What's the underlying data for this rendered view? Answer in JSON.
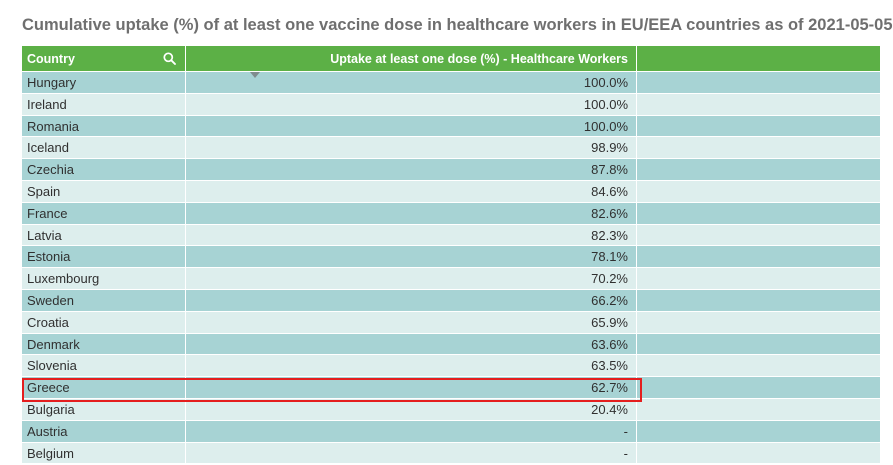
{
  "title": "Cumulative uptake (%) of at least one vaccine dose in healthcare workers in EU/EEA countries as of 2021-05-05",
  "colors": {
    "header_bg": "#5cb046",
    "row_odd": "#a7d3d4",
    "row_even": "#ddeeed",
    "highlight": "#e41e1e"
  },
  "table": {
    "col_country": "Country",
    "col_value": "Uptake at least one dose (%) - Healthcare Workers",
    "search_icon": "search-icon",
    "sort_icon": "sort-descending-icon"
  },
  "highlighted_row": "Greece",
  "chart_data": {
    "type": "table",
    "title": "Cumulative uptake (%) of at least one vaccine dose in healthcare workers in EU/EEA countries as of 2021-05-05",
    "columns": [
      "Country",
      "Uptake at least one dose (%) - Healthcare Workers"
    ],
    "rows": [
      {
        "country": "Hungary",
        "value": "100.0%"
      },
      {
        "country": "Ireland",
        "value": "100.0%"
      },
      {
        "country": "Romania",
        "value": "100.0%"
      },
      {
        "country": "Iceland",
        "value": "98.9%"
      },
      {
        "country": "Czechia",
        "value": "87.8%"
      },
      {
        "country": "Spain",
        "value": "84.6%"
      },
      {
        "country": "France",
        "value": "82.6%"
      },
      {
        "country": "Latvia",
        "value": "82.3%"
      },
      {
        "country": "Estonia",
        "value": "78.1%"
      },
      {
        "country": "Luxembourg",
        "value": "70.2%"
      },
      {
        "country": "Sweden",
        "value": "66.2%"
      },
      {
        "country": "Croatia",
        "value": "65.9%"
      },
      {
        "country": "Denmark",
        "value": "63.6%"
      },
      {
        "country": "Slovenia",
        "value": "63.5%"
      },
      {
        "country": "Greece",
        "value": "62.7%"
      },
      {
        "country": "Bulgaria",
        "value": "20.4%"
      },
      {
        "country": "Austria",
        "value": "-"
      },
      {
        "country": "Belgium",
        "value": "-"
      }
    ]
  }
}
